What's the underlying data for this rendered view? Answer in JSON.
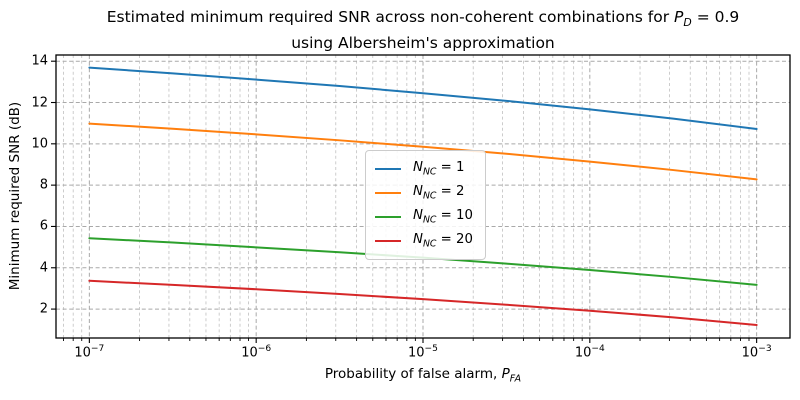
{
  "title": {
    "line1_prefix": "Estimated minimum required SNR across non-coherent combinations for ",
    "pd_symbol": "P",
    "pd_sub": "D",
    "pd_suffix": " = 0.9",
    "line2": "using Albersheim's approximation"
  },
  "axes": {
    "xlabel_prefix": "Probability of false alarm, ",
    "xlabel_symbol": "P",
    "xlabel_sub": "FA",
    "ylabel": "Minimum required SNR (dB)",
    "x_tick_base": "10",
    "x_tick_exponents": [
      "−7",
      "−6",
      "−5",
      "−4",
      "−3"
    ],
    "y_tick_labels": [
      "2",
      "4",
      "6",
      "8",
      "10",
      "12",
      "14"
    ]
  },
  "legend": {
    "items": [
      {
        "symbol": "N",
        "sub": "NC",
        "rest": " = 1",
        "color": "#1f77b4"
      },
      {
        "symbol": "N",
        "sub": "NC",
        "rest": " = 2",
        "color": "#ff7f0e"
      },
      {
        "symbol": "N",
        "sub": "NC",
        "rest": " = 10",
        "color": "#2ca02c"
      },
      {
        "symbol": "N",
        "sub": "NC",
        "rest": " = 20",
        "color": "#d62728"
      }
    ]
  },
  "chart_data": {
    "type": "line",
    "title": "Estimated minimum required SNR across non-coherent combinations for P_D = 0.9 using Albersheim's approximation",
    "xlabel": "Probability of false alarm, P_FA",
    "ylabel": "Minimum required SNR (dB)",
    "xscale": "log",
    "xlim": [
      6.31e-08,
      0.001585
    ],
    "ylim": [
      0.6,
      14.3
    ],
    "x_major_ticks": [
      1e-07,
      1e-06,
      1e-05,
      0.0001,
      0.001
    ],
    "y_major_ticks": [
      2,
      4,
      6,
      8,
      10,
      12,
      14
    ],
    "grid": "both, dashed",
    "legend_position": "center",
    "x": [
      1e-07,
      3.162e-07,
      1e-06,
      3.162e-06,
      1e-05,
      3.162e-05,
      0.0001,
      0.0003162,
      0.001
    ],
    "series": [
      {
        "name": "N_NC = 1",
        "color": "#1f77b4",
        "values": [
          13.69,
          13.41,
          13.11,
          12.8,
          12.45,
          12.08,
          11.67,
          11.22,
          10.72
        ]
      },
      {
        "name": "N_NC = 2",
        "color": "#ff7f0e",
        "values": [
          10.98,
          10.73,
          10.46,
          10.17,
          9.86,
          9.52,
          9.14,
          8.73,
          8.28
        ]
      },
      {
        "name": "N_NC = 10",
        "color": "#2ca02c",
        "values": [
          5.43,
          5.22,
          4.99,
          4.75,
          4.49,
          4.2,
          3.89,
          3.55,
          3.17
        ]
      },
      {
        "name": "N_NC = 20",
        "color": "#d62728",
        "values": [
          3.37,
          3.17,
          2.96,
          2.73,
          2.48,
          2.21,
          1.92,
          1.6,
          1.23
        ]
      }
    ],
    "style": {
      "grid_major_color": "#a9a9a9",
      "grid_minor_color": "#c0c0c0",
      "spine_color": "#000000",
      "line_width": 2
    }
  }
}
